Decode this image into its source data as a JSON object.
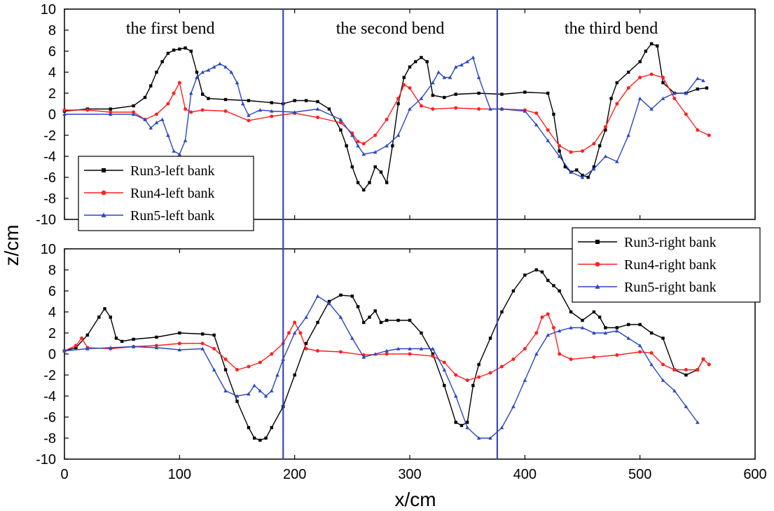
{
  "chart_data": {
    "type": "line",
    "xlabel": "x/cm",
    "ylabel": "z/cm",
    "xlim": [
      0,
      600
    ],
    "xticks": [
      0,
      100,
      200,
      300,
      400,
      500,
      600
    ],
    "dividers_x": [
      190,
      376
    ],
    "colors": {
      "Run3": "#000000",
      "Run4": "#ff2020",
      "Run5": "#2a47c0",
      "divider": "#3a49b5"
    },
    "panels": [
      {
        "id": "left",
        "ylim": [
          -10,
          10
        ],
        "yticks": [
          10,
          8,
          6,
          4,
          2,
          0,
          -2,
          -4,
          -6,
          -8,
          -10
        ],
        "legend_position": "bottom-left",
        "annotations": [
          {
            "text": "the first bend",
            "x": 92
          },
          {
            "text": "the second bend",
            "x": 283
          },
          {
            "text": "the third bend",
            "x": 475
          }
        ],
        "series": [
          {
            "name": "Run3-left bank",
            "color": "#000000",
            "marker": "square",
            "x": [
              0,
              20,
              40,
              60,
              70,
              75,
              80,
              85,
              90,
              95,
              100,
              105,
              110,
              115,
              120,
              125,
              140,
              160,
              180,
              190,
              200,
              210,
              220,
              230,
              240,
              245,
              250,
              255,
              260,
              265,
              270,
              275,
              280,
              285,
              290,
              295,
              300,
              305,
              310,
              315,
              320,
              330,
              340,
              360,
              380,
              400,
              420,
              425,
              430,
              435,
              440,
              445,
              450,
              455,
              460,
              465,
              470,
              475,
              480,
              490,
              500,
              505,
              510,
              515,
              520,
              530,
              540,
              550,
              558
            ],
            "y": [
              0.3,
              0.5,
              0.5,
              0.8,
              1.6,
              2.7,
              4.0,
              5.0,
              5.8,
              6.1,
              6.2,
              6.3,
              6.0,
              4.0,
              1.9,
              1.5,
              1.4,
              1.3,
              1.1,
              1.0,
              1.3,
              1.3,
              1.2,
              0.5,
              -1.5,
              -3.0,
              -5.0,
              -6.5,
              -7.2,
              -6.5,
              -5.0,
              -5.5,
              -6.5,
              -3.0,
              1.0,
              3.5,
              4.5,
              5.0,
              5.4,
              5.0,
              1.8,
              1.6,
              1.9,
              2.0,
              1.9,
              2.1,
              2.0,
              0.0,
              -3.5,
              -5.0,
              -5.5,
              -5.3,
              -5.8,
              -6.0,
              -5.0,
              -3.0,
              -1.5,
              1.5,
              3.0,
              4.0,
              5.0,
              6.0,
              6.7,
              6.5,
              3.0,
              2.0,
              2.0,
              2.4,
              2.5
            ]
          },
          {
            "name": "Run4-left bank",
            "color": "#ff2020",
            "marker": "circle",
            "x": [
              0,
              20,
              40,
              60,
              70,
              80,
              90,
              95,
              100,
              105,
              110,
              120,
              140,
              160,
              180,
              200,
              220,
              240,
              250,
              255,
              260,
              270,
              280,
              290,
              295,
              300,
              310,
              320,
              340,
              360,
              380,
              400,
              410,
              420,
              430,
              440,
              450,
              460,
              470,
              480,
              490,
              500,
              510,
              520,
              530,
              540,
              550,
              560
            ],
            "y": [
              0.4,
              0.4,
              0.2,
              0.2,
              -0.5,
              0.0,
              1.0,
              2.0,
              3.0,
              0.5,
              0.2,
              0.4,
              0.3,
              -0.6,
              -0.2,
              0.1,
              -0.3,
              -0.8,
              -1.8,
              -2.6,
              -2.8,
              -2.0,
              -0.5,
              1.5,
              2.8,
              2.5,
              0.8,
              0.5,
              0.6,
              0.5,
              0.5,
              0.4,
              0.1,
              -1.5,
              -3.0,
              -3.6,
              -3.5,
              -2.8,
              -1.2,
              1.0,
              2.5,
              3.5,
              3.8,
              3.5,
              1.5,
              0.0,
              -1.5,
              -2.0
            ]
          },
          {
            "name": "Run5-left bank",
            "color": "#2a47c0",
            "marker": "triangle",
            "x": [
              0,
              40,
              60,
              70,
              75,
              80,
              85,
              90,
              95,
              100,
              105,
              110,
              115,
              120,
              125,
              130,
              135,
              140,
              145,
              150,
              155,
              160,
              170,
              180,
              200,
              220,
              240,
              250,
              255,
              260,
              270,
              280,
              290,
              300,
              310,
              320,
              325,
              330,
              335,
              340,
              345,
              350,
              355,
              360,
              370,
              380,
              400,
              410,
              420,
              430,
              440,
              450,
              460,
              470,
              480,
              490,
              500,
              510,
              520,
              530,
              540,
              550,
              555
            ],
            "y": [
              0.0,
              0.0,
              0.0,
              -0.5,
              -1.3,
              -0.8,
              -0.5,
              -2.0,
              -3.5,
              -3.8,
              -2.5,
              2.0,
              3.5,
              4.0,
              4.2,
              4.5,
              4.8,
              4.5,
              4.0,
              3.0,
              1.0,
              -0.1,
              0.4,
              0.3,
              0.2,
              0.5,
              -0.5,
              -2.0,
              -3.0,
              -3.8,
              -3.6,
              -3.0,
              -2.0,
              0.5,
              1.5,
              3.0,
              4.0,
              3.5,
              3.5,
              4.5,
              4.7,
              5.0,
              5.4,
              3.5,
              0.5,
              0.5,
              0.3,
              -1.0,
              -2.5,
              -4.0,
              -5.5,
              -6.0,
              -5.2,
              -4.0,
              -4.5,
              -2.0,
              1.5,
              0.5,
              1.5,
              2.0,
              2.0,
              3.4,
              3.2
            ]
          }
        ]
      },
      {
        "id": "right",
        "ylim": [
          -10,
          10
        ],
        "yticks": [
          10,
          8,
          6,
          4,
          2,
          0,
          -2,
          -4,
          -6,
          -8,
          -10
        ],
        "legend_position": "top-right",
        "series": [
          {
            "name": "Run3-right bank",
            "color": "#000000",
            "marker": "square",
            "x": [
              0,
              10,
              20,
              30,
              35,
              40,
              45,
              50,
              60,
              80,
              100,
              120,
              130,
              140,
              150,
              160,
              165,
              170,
              175,
              180,
              190,
              200,
              210,
              220,
              230,
              240,
              250,
              255,
              260,
              265,
              270,
              275,
              280,
              290,
              300,
              310,
              320,
              330,
              340,
              345,
              350,
              355,
              360,
              370,
              380,
              390,
              400,
              410,
              415,
              420,
              425,
              430,
              440,
              450,
              460,
              465,
              470,
              480,
              490,
              500,
              510,
              520,
              530,
              540,
              550,
              555
            ],
            "y": [
              0.3,
              0.6,
              1.8,
              3.5,
              4.3,
              3.5,
              1.5,
              1.2,
              1.4,
              1.6,
              2.0,
              1.9,
              1.8,
              -1.5,
              -4.5,
              -7.0,
              -8.0,
              -8.2,
              -8.0,
              -7.0,
              -5.0,
              -2.0,
              1.0,
              3.0,
              5.0,
              5.6,
              5.5,
              4.5,
              3.0,
              3.5,
              4.1,
              3.0,
              3.2,
              3.2,
              3.2,
              2.0,
              0.0,
              -3.0,
              -6.5,
              -6.8,
              -6.5,
              -3.0,
              -1.0,
              1.5,
              4.0,
              6.0,
              7.5,
              8.0,
              7.8,
              7.0,
              6.5,
              6.0,
              4.0,
              3.2,
              4.0,
              3.5,
              2.5,
              2.5,
              2.8,
              2.8,
              2.0,
              1.5,
              -1.5,
              -2.0,
              -1.5,
              -0.5
            ]
          },
          {
            "name": "Run4-right bank",
            "color": "#ff2020",
            "marker": "circle",
            "x": [
              0,
              10,
              15,
              20,
              40,
              60,
              80,
              100,
              120,
              130,
              140,
              150,
              160,
              170,
              180,
              190,
              195,
              200,
              205,
              210,
              220,
              240,
              260,
              280,
              300,
              320,
              330,
              340,
              350,
              360,
              370,
              380,
              390,
              400,
              410,
              415,
              420,
              425,
              430,
              440,
              460,
              480,
              500,
              510,
              520,
              530,
              540,
              550,
              555,
              560
            ],
            "y": [
              0.3,
              0.8,
              1.5,
              0.6,
              0.5,
              0.7,
              0.8,
              1.0,
              1.0,
              0.5,
              -0.5,
              -1.5,
              -1.2,
              -0.8,
              0.0,
              1.0,
              2.0,
              3.0,
              2.0,
              0.5,
              0.3,
              0.2,
              -0.1,
              0.0,
              0.0,
              -0.2,
              -0.8,
              -2.0,
              -2.5,
              -2.2,
              -1.8,
              -1.2,
              -0.5,
              0.5,
              2.0,
              3.5,
              3.8,
              2.5,
              0.0,
              -0.5,
              -0.3,
              -0.1,
              0.2,
              0.1,
              -1.0,
              -1.5,
              -1.5,
              -1.5,
              -0.5,
              -1.0
            ]
          },
          {
            "name": "Run5-right bank",
            "color": "#2a47c0",
            "marker": "triangle",
            "x": [
              0,
              20,
              40,
              60,
              80,
              100,
              120,
              130,
              140,
              150,
              160,
              165,
              170,
              175,
              180,
              185,
              190,
              200,
              210,
              220,
              230,
              240,
              250,
              260,
              270,
              280,
              290,
              300,
              310,
              320,
              330,
              340,
              350,
              360,
              370,
              380,
              390,
              400,
              410,
              420,
              430,
              440,
              450,
              460,
              470,
              480,
              490,
              500,
              510,
              520,
              530,
              540,
              550
            ],
            "y": [
              0.3,
              0.5,
              0.6,
              0.7,
              0.6,
              0.4,
              0.5,
              -1.5,
              -3.5,
              -4.0,
              -3.8,
              -3.0,
              -3.5,
              -4.0,
              -3.5,
              -2.0,
              -0.5,
              2.0,
              3.5,
              5.5,
              4.8,
              3.5,
              1.5,
              -0.3,
              0.0,
              0.3,
              0.5,
              0.5,
              0.5,
              0.5,
              -1.5,
              -4.0,
              -7.0,
              -8.0,
              -8.0,
              -7.0,
              -5.0,
              -2.5,
              0.0,
              1.8,
              2.2,
              2.5,
              2.5,
              2.0,
              2.0,
              2.2,
              1.5,
              0.8,
              -1.0,
              -2.5,
              -3.5,
              -5.0,
              -6.5
            ]
          }
        ]
      }
    ]
  }
}
